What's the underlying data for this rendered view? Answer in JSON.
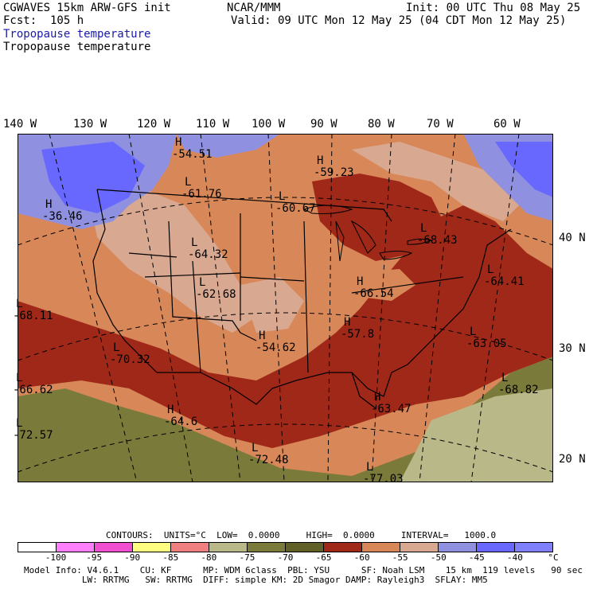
{
  "header": {
    "line1_left": "CGWAVES 15km ARW-GFS init",
    "line1_mid": "NCAR/MMM",
    "line1_right": "Init: 00 UTC Thu 08 May 25",
    "line2_left": "Fcst:  105 h",
    "line2_right": "Valid: 09 UTC Mon 12 May 25 (04 CDT Mon 12 May 25)",
    "field_title_color": "Tropopause temperature",
    "field_title_black": "Tropopause temperature",
    "title_blue": "#1a1aaa"
  },
  "map": {
    "lon_labels": [
      "140 W",
      "130 W",
      "120 W",
      "110 W",
      "100 W",
      "90 W",
      "80 W",
      "70 W",
      "60 W"
    ],
    "lat_labels": [
      "40 N",
      "30 N",
      "20 N"
    ],
    "extrema": [
      {
        "type": "H",
        "value": "-54.51"
      },
      {
        "type": "H",
        "value": "-59.23"
      },
      {
        "type": "L",
        "value": "-61.76"
      },
      {
        "type": "H",
        "value": "-36.46"
      },
      {
        "type": "L",
        "value": "-60.67"
      },
      {
        "type": "L",
        "value": "-64.32"
      },
      {
        "type": "L",
        "value": "-68.43"
      },
      {
        "type": "L",
        "value": "-62.68"
      },
      {
        "type": "L",
        "value": "-64.41"
      },
      {
        "type": "H",
        "value": "-66.54"
      },
      {
        "type": "L",
        "value": "-68.11"
      },
      {
        "type": "H",
        "value": "-57.8"
      },
      {
        "type": "H",
        "value": "-54.62"
      },
      {
        "type": "L",
        "value": "-63.05"
      },
      {
        "type": "L",
        "value": "-70.32"
      },
      {
        "type": "L",
        "value": "-66.62"
      },
      {
        "type": "L",
        "value": "-68.82"
      },
      {
        "type": "H",
        "value": "-64.6"
      },
      {
        "type": "H",
        "value": "-63.47"
      },
      {
        "type": "L",
        "value": "-72.57"
      },
      {
        "type": "L",
        "value": "-72.48"
      },
      {
        "type": "L",
        "value": "-77.03"
      }
    ]
  },
  "contours": {
    "text": "CONTOURS:  UNITS=°C  LOW=  0.0000     HIGH=  0.0000     INTERVAL=   1000.0"
  },
  "legend": {
    "ticks": [
      "-100",
      "-95",
      "-90",
      "-85",
      "-80",
      "-75",
      "-70",
      "-65",
      "-60",
      "-55",
      "-50",
      "-45",
      "-40",
      "°C"
    ],
    "colors": [
      "#ffffff",
      "#ff80ff",
      "#f050d0",
      "#ffff80",
      "#f08080",
      "#b8b888",
      "#7a7a3a",
      "#606028",
      "#a02818",
      "#d88858",
      "#d8a890",
      "#9090e0",
      "#6868ff",
      "#8080ff"
    ]
  },
  "footer": {
    "line1": "Model Info: V4.6.1    CU: KF      MP: WDM 6class  PBL: YSU      SF: Noah LSM    15 km  119 levels   90 sec",
    "line2": "           LW: RRTMG   SW: RRTMG  DIFF: simple KM: 2D Smagor DAMP: Rayleigh3  SFLAY: MM5"
  }
}
